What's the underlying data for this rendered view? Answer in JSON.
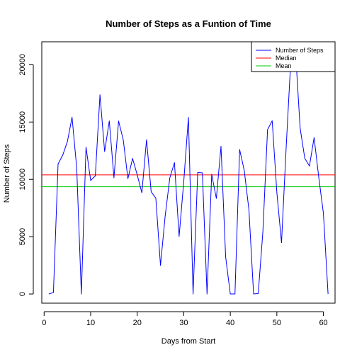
{
  "chart_data": {
    "type": "line",
    "title": "Number of Steps as a Funtion of Time",
    "xlabel": "Days from Start",
    "ylabel": "Number of Steps",
    "xlim": [
      -0.5,
      62.5
    ],
    "ylim": [
      -800,
      22000
    ],
    "x_ticks": [
      0,
      10,
      20,
      30,
      40,
      50,
      60
    ],
    "y_ticks": [
      0,
      5000,
      10000,
      15000,
      20000
    ],
    "grid": false,
    "legend_position": "top-right",
    "series": [
      {
        "name": "Number of Steps",
        "color": "#0000ff",
        "x": [
          1,
          2,
          3,
          4,
          5,
          6,
          7,
          8,
          9,
          10,
          11,
          12,
          13,
          14,
          15,
          16,
          17,
          18,
          19,
          20,
          21,
          22,
          23,
          24,
          25,
          26,
          27,
          28,
          29,
          30,
          31,
          32,
          33,
          34,
          35,
          36,
          37,
          38,
          39,
          40,
          41,
          42,
          43,
          44,
          45,
          46,
          47,
          48,
          49,
          50,
          51,
          52,
          53,
          54,
          55,
          56,
          57,
          58,
          59,
          60,
          61
        ],
        "values": [
          0,
          126,
          11352,
          12116,
          13294,
          15420,
          11015,
          0,
          12811,
          9900,
          10304,
          17382,
          12426,
          15098,
          10139,
          15084,
          13452,
          10056,
          11829,
          10395,
          8821,
          13460,
          8918,
          8355,
          2492,
          6778,
          10119,
          11458,
          5018,
          9819,
          15414,
          0,
          10600,
          10571,
          0,
          10439,
          8334,
          12883,
          3219,
          0,
          0,
          12608,
          10765,
          7336,
          0,
          41,
          5441,
          14339,
          15110,
          8841,
          4472,
          12787,
          20427,
          21194,
          14478,
          11834,
          11162,
          13646,
          10183,
          7047,
          0
        ]
      }
    ],
    "reference_lines": [
      {
        "name": "Median",
        "color": "#ff0000",
        "value": 10395
      },
      {
        "name": "Mean",
        "color": "#00cd00",
        "value": 9354
      }
    ]
  }
}
